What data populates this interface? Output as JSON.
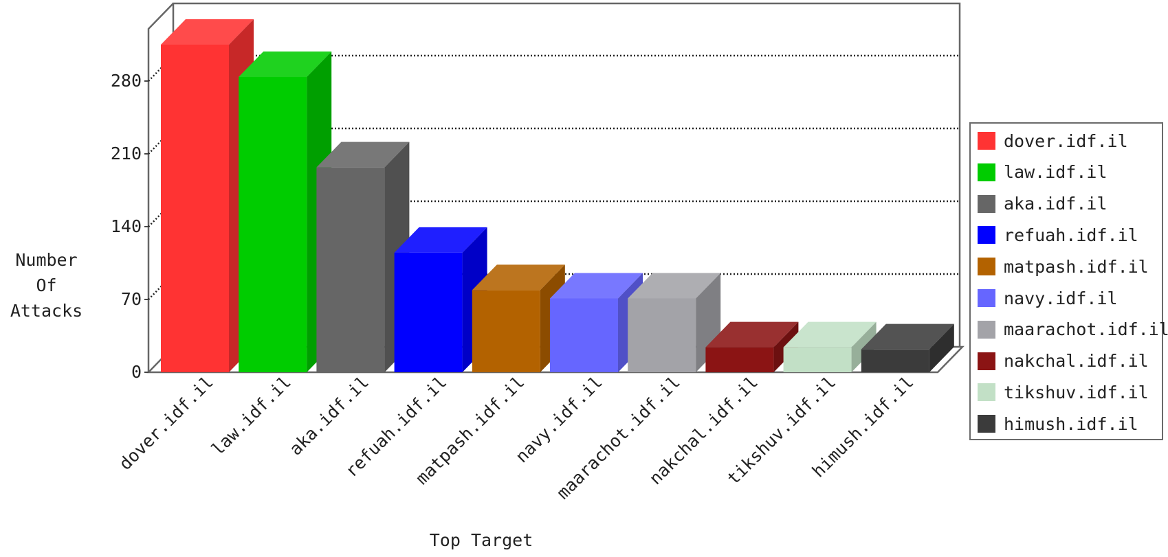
{
  "chart_data": {
    "type": "bar",
    "categories": [
      "dover.idf.il",
      "law.idf.il",
      "aka.idf.il",
      "refuah.idf.il",
      "matpash.idf.il",
      "navy.idf.il",
      "maarachot.idf.il",
      "nakchal.idf.il",
      "tikshuv.idf.il",
      "himush.idf.il"
    ],
    "values": [
      315,
      284,
      197,
      115,
      79,
      71,
      71,
      24,
      24,
      22
    ],
    "colors": [
      "#ff3333",
      "#00cc00",
      "#666666",
      "#0000ff",
      "#b36200",
      "#6666ff",
      "#a3a3a8",
      "#8b1414",
      "#c2e0c6",
      "#3b3b3b"
    ],
    "xlabel": "Top Target",
    "ylabel_lines": [
      "Number",
      "Of",
      "Attacks"
    ],
    "yticks": [
      0,
      70,
      140,
      210,
      280
    ],
    "ylim": [
      0,
      350
    ],
    "grid": true,
    "legend_position": "right",
    "three_d": true
  }
}
